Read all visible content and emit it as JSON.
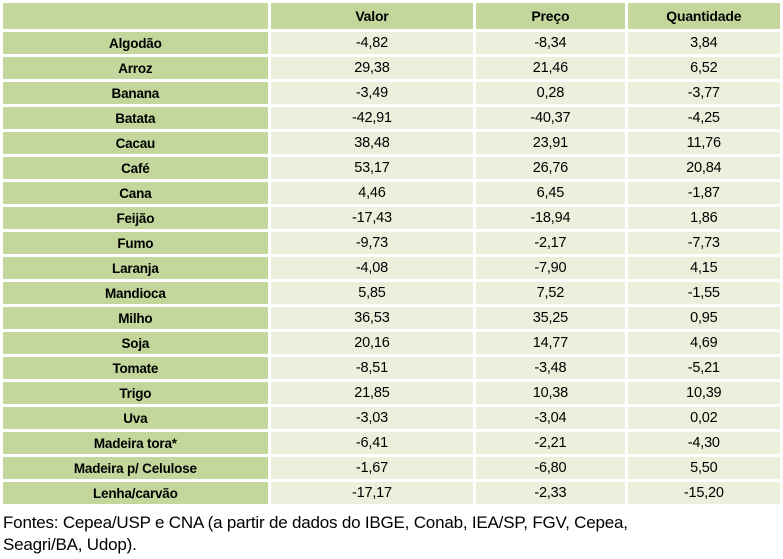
{
  "chart_data": {
    "type": "table",
    "columns": [
      "",
      "Valor",
      "Preço",
      "Quantidade"
    ],
    "rows": [
      [
        "Algodão",
        "-4,82",
        "-8,34",
        "3,84"
      ],
      [
        "Arroz",
        "29,38",
        "21,46",
        "6,52"
      ],
      [
        "Banana",
        "-3,49",
        "0,28",
        "-3,77"
      ],
      [
        "Batata",
        "-42,91",
        "-40,37",
        "-4,25"
      ],
      [
        "Cacau",
        "38,48",
        "23,91",
        "11,76"
      ],
      [
        "Café",
        "53,17",
        "26,76",
        "20,84"
      ],
      [
        "Cana",
        "4,46",
        "6,45",
        "-1,87"
      ],
      [
        "Feijão",
        "-17,43",
        "-18,94",
        "1,86"
      ],
      [
        "Fumo",
        "-9,73",
        "-2,17",
        "-7,73"
      ],
      [
        "Laranja",
        "-4,08",
        "-7,90",
        "4,15"
      ],
      [
        "Mandioca",
        "5,85",
        "7,52",
        "-1,55"
      ],
      [
        "Milho",
        "36,53",
        "35,25",
        "0,95"
      ],
      [
        "Soja",
        "20,16",
        "14,77",
        "4,69"
      ],
      [
        "Tomate",
        "-8,51",
        "-3,48",
        "-5,21"
      ],
      [
        "Trigo",
        "21,85",
        "10,38",
        "10,39"
      ],
      [
        "Uva",
        "-3,03",
        "-3,04",
        "0,02"
      ],
      [
        "Madeira tora*",
        "-6,41",
        "-2,21",
        "-4,30"
      ],
      [
        "Madeira p/ Celulose",
        "-1,67",
        "-6,80",
        "5,50"
      ],
      [
        "Lenha/carvão",
        "-17,17",
        "-2,33",
        "-15,20"
      ]
    ],
    "title": "",
    "legend": [],
    "layout": {
      "header_background": "#c3d69b",
      "row_label_background": "#c3d69b",
      "cell_background": "#ecefdc",
      "grid_gap_color": "#ffffff"
    }
  },
  "footer": {
    "line1": "Fontes: Cepea/USP e CNA (a partir de dados do IBGE, Conab, IEA/SP, FGV, Cepea,",
    "line2": "Seagri/BA, Udop)."
  },
  "colors": {
    "header_green": "#c3d69b",
    "cell_cream": "#ecefdc",
    "text": "#000000",
    "background": "#ffffff"
  }
}
